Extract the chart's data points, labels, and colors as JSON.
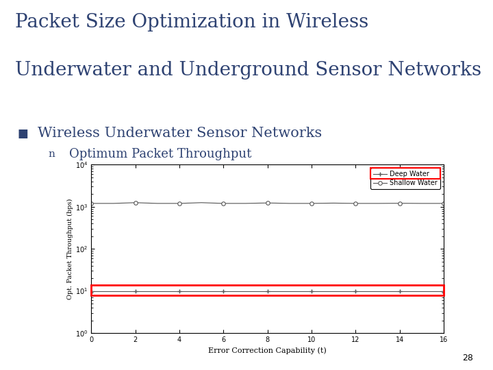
{
  "title_line1": "Packet Size Optimization in Wireless",
  "title_line2": "Underwater and Underground Sensor Networks",
  "title_color": "#2E4272",
  "title_fontsize": 20,
  "subtitle": "Wireless Underwater Sensor Networks",
  "subtitle_color": "#2E4272",
  "subtitle_fontsize": 15,
  "bullet_label": "Optimum Packet Throughput",
  "bullet_fontsize": 13,
  "bg_color": "#ffffff",
  "left_bar_color": "#1F3864",
  "plot_bg": "#ffffff",
  "xlabel": "Error Correction Capability (t)",
  "ylabel": "Opt. Packet Throughput (bps)",
  "x_data": [
    0,
    1,
    2,
    3,
    4,
    5,
    6,
    7,
    8,
    9,
    10,
    11,
    12,
    13,
    14,
    15,
    16
  ],
  "deep_water_y": [
    10,
    10,
    10,
    10,
    10,
    10,
    10,
    10,
    10,
    10,
    10,
    10,
    10,
    10,
    10,
    10,
    10
  ],
  "shallow_water_y": [
    1200,
    1200,
    1250,
    1200,
    1200,
    1250,
    1200,
    1200,
    1230,
    1200,
    1200,
    1220,
    1200,
    1200,
    1210,
    1200,
    1200
  ],
  "xlim": [
    0,
    16
  ],
  "ylim_log": [
    1,
    10000
  ],
  "xticks": [
    0,
    2,
    4,
    6,
    8,
    10,
    12,
    14,
    16
  ],
  "line_color": "#555555",
  "deep_marker": "+",
  "shallow_marker": "o",
  "page_number": "28"
}
